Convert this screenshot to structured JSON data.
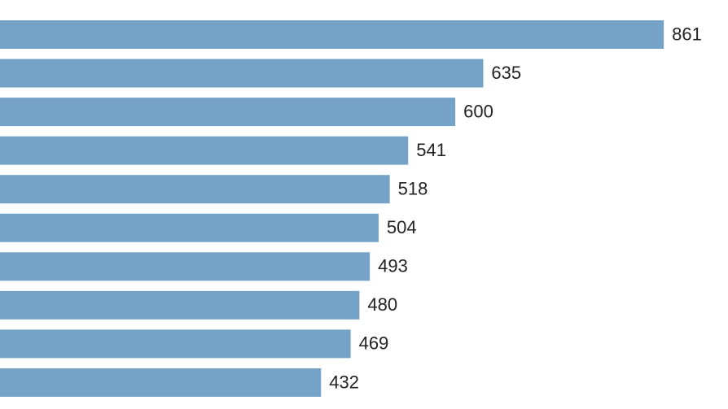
{
  "chart_data": {
    "type": "bar",
    "orientation": "horizontal",
    "values": [
      861,
      635,
      600,
      541,
      518,
      504,
      493,
      480,
      469,
      432
    ],
    "color": "#74a3c7"
  }
}
